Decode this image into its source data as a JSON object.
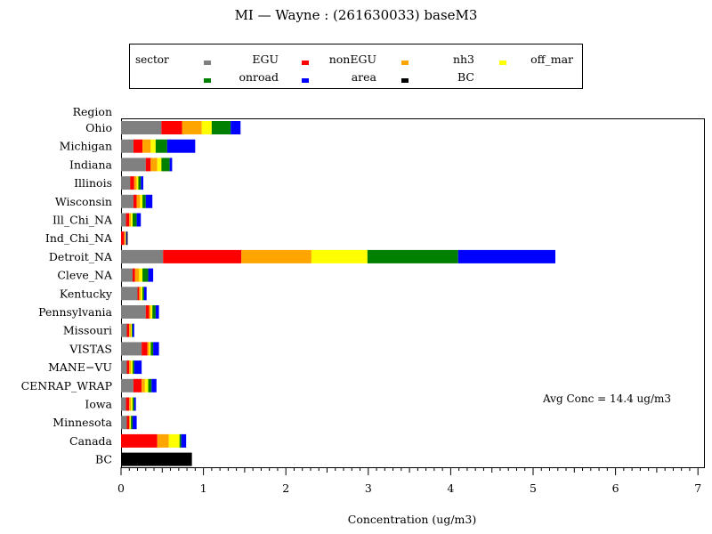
{
  "chart_data": {
    "type": "bar",
    "orientation": "horizontal",
    "stacked": true,
    "title": "MI — Wayne : (261630033) baseM3",
    "xlabel": "Concentration (ug/m3)",
    "ylabel": "Region",
    "xlim": [
      0,
      7
    ],
    "xticks": [
      "0",
      "1",
      "2",
      "3",
      "4",
      "5",
      "6",
      "7"
    ],
    "legend": {
      "title": "sector",
      "position": "top"
    },
    "annotation": "Avg Conc = 14.4 ug/m3",
    "categories": [
      "Ohio",
      "Michigan",
      "Indiana",
      "Illinois",
      "Wisconsin",
      "Ill_Chi_NA",
      "Ind_Chi_NA",
      "Detroit_NA",
      "Cleve_NA",
      "Kentucky",
      "Pennsylvania",
      "Missouri",
      "VISTAS",
      "MANE−VU",
      "CENRAP_WRAP",
      "Iowa",
      "Minnesota",
      "Canada",
      "BC"
    ],
    "series": [
      {
        "name": "EGU",
        "color": "#808080",
        "values": [
          0.49,
          0.15,
          0.3,
          0.11,
          0.15,
          0.06,
          0.0,
          0.51,
          0.14,
          0.2,
          0.3,
          0.07,
          0.25,
          0.07,
          0.15,
          0.06,
          0.07,
          0.0,
          0.0
        ]
      },
      {
        "name": "nonEGU",
        "color": "#ff0000",
        "values": [
          0.25,
          0.11,
          0.06,
          0.05,
          0.04,
          0.04,
          0.04,
          0.95,
          0.03,
          0.02,
          0.04,
          0.03,
          0.07,
          0.03,
          0.1,
          0.04,
          0.03,
          0.44,
          0.0
        ]
      },
      {
        "name": "nh3",
        "color": "#ffa500",
        "values": [
          0.24,
          0.1,
          0.08,
          0.03,
          0.04,
          0.02,
          0.01,
          0.85,
          0.05,
          0.02,
          0.02,
          0.02,
          0.02,
          0.02,
          0.04,
          0.02,
          0.01,
          0.14,
          0.0
        ]
      },
      {
        "name": "off_mar",
        "color": "#ffff00",
        "values": [
          0.12,
          0.06,
          0.05,
          0.02,
          0.03,
          0.02,
          0.01,
          0.68,
          0.04,
          0.02,
          0.02,
          0.01,
          0.02,
          0.02,
          0.04,
          0.02,
          0.01,
          0.13,
          0.0
        ]
      },
      {
        "name": "onroad",
        "color": "#008000",
        "values": [
          0.23,
          0.14,
          0.1,
          0.03,
          0.04,
          0.05,
          0.0,
          1.1,
          0.07,
          0.02,
          0.04,
          0.01,
          0.03,
          0.02,
          0.04,
          0.02,
          0.02,
          0.02,
          0.0
        ]
      },
      {
        "name": "area",
        "color": "#0000ff",
        "values": [
          0.12,
          0.34,
          0.03,
          0.03,
          0.08,
          0.05,
          0.01,
          1.18,
          0.06,
          0.03,
          0.04,
          0.02,
          0.07,
          0.09,
          0.06,
          0.02,
          0.05,
          0.06,
          0.0
        ]
      },
      {
        "name": "BC",
        "color": "#000000",
        "values": [
          0.0,
          0.0,
          0.0,
          0.0,
          0.0,
          0.0,
          0.01,
          0.0,
          0.0,
          0.0,
          0.0,
          0.0,
          0.0,
          0.0,
          0.0,
          0.0,
          0.0,
          0.0,
          0.86
        ]
      }
    ]
  }
}
